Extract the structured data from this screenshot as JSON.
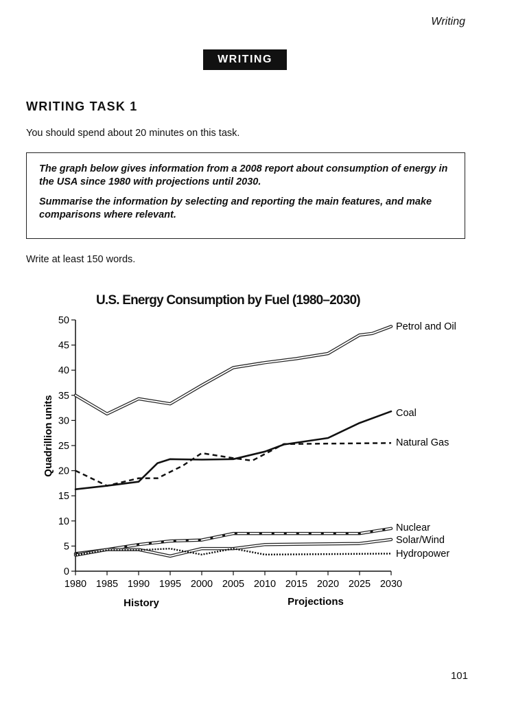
{
  "page": {
    "section_header": "Writing",
    "section_box": "WRITING",
    "task_title": "WRITING TASK 1",
    "instruction": "You should spend about 20 minutes on this task.",
    "task_paragraphs": [
      "The graph below gives information from a 2008 report about consumption of energy in the USA since 1980 with projections until 2030.",
      "Summarise the information by selecting and reporting the main features, and make comparisons where relevant."
    ],
    "word_count": "Write at least 150 words.",
    "page_number": "101"
  },
  "chart_data": {
    "type": "line",
    "title": "U.S. Energy Consumption by Fuel (1980–2030)",
    "xlabel": "",
    "ylabel": "Quadrillion units",
    "xlim": [
      1980,
      2030
    ],
    "ylim": [
      0,
      50
    ],
    "xticks": [
      "1980",
      "1985",
      "1990",
      "1995",
      "2000",
      "2005",
      "2010",
      "2015",
      "2020",
      "2025",
      "2030"
    ],
    "yticks": [
      "0",
      "5",
      "10",
      "15",
      "20",
      "25",
      "30",
      "35",
      "40",
      "45",
      "50"
    ],
    "period_labels": [
      "History",
      "Projections"
    ],
    "grid": false,
    "legend": "inline-right",
    "series": [
      {
        "name": "Petrol and Oil",
        "style": "double",
        "x": [
          1980,
          1985,
          1990,
          1995,
          2000,
          2005,
          2010,
          2015,
          2020,
          2025,
          2027,
          2030
        ],
        "y": [
          35,
          31.3,
          34.3,
          33.3,
          37,
          40.5,
          41.5,
          42.3,
          43.3,
          47,
          47.3,
          48.7
        ]
      },
      {
        "name": "Coal",
        "style": "solid",
        "x": [
          1980,
          1985,
          1990,
          1993,
          1995,
          2000,
          2005,
          2010,
          2013,
          2020,
          2025,
          2030
        ],
        "y": [
          16.3,
          17,
          17.8,
          21.5,
          22.3,
          22.2,
          22.3,
          23.8,
          25.2,
          26.5,
          29.5,
          31.8
        ]
      },
      {
        "name": "Natural Gas",
        "style": "dashed",
        "x": [
          1980,
          1985,
          1990,
          1993,
          1997,
          2000,
          2005,
          2008,
          2013,
          2030
        ],
        "y": [
          20,
          17,
          18.5,
          18.5,
          21,
          23.5,
          22.5,
          22,
          25.3,
          25.5
        ]
      },
      {
        "name": "Nuclear",
        "style": "double-dashed",
        "x": [
          1980,
          1985,
          1990,
          1995,
          2000,
          2005,
          2025,
          2030
        ],
        "y": [
          3.5,
          4.3,
          5.3,
          6,
          6.2,
          7.5,
          7.5,
          8.5
        ]
      },
      {
        "name": "Solar/Wind",
        "style": "double",
        "x": [
          1980,
          1985,
          1990,
          1995,
          2000,
          2005,
          2010,
          2025,
          2030
        ],
        "y": [
          3.2,
          4.3,
          4.3,
          3,
          4.5,
          4.5,
          5.3,
          5.5,
          6.3
        ]
      },
      {
        "name": "Hydropower",
        "style": "dotted",
        "x": [
          1980,
          1985,
          1990,
          1995,
          2000,
          2005,
          2010,
          2030
        ],
        "y": [
          3.2,
          4.2,
          4.2,
          4.5,
          3.3,
          4.5,
          3.3,
          3.5
        ]
      }
    ]
  }
}
